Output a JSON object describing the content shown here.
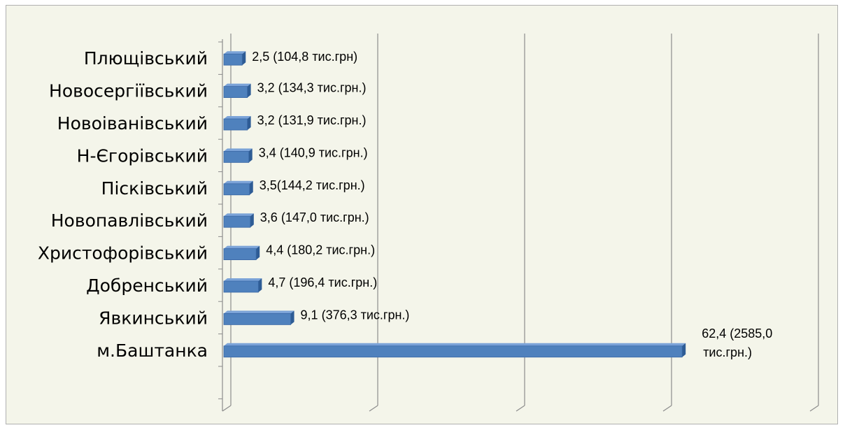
{
  "chart_data": {
    "type": "bar",
    "orientation": "horizontal",
    "title": "",
    "xlabel": "",
    "ylabel": "",
    "xlim": [
      0,
      80
    ],
    "grid": true,
    "legend": "none",
    "bar_color": "#4f81bd",
    "categories": [
      "Плющівський",
      "Новосергіївський",
      "Новоіванівський",
      "Н-Єгорівський",
      "Пісківський",
      "Новопавлівський",
      "Христофорівський",
      "Добренський",
      "Явкинський",
      "м.Баштанка"
    ],
    "values": [
      2.5,
      3.2,
      3.2,
      3.4,
      3.5,
      3.6,
      4.4,
      4.7,
      9.1,
      62.4
    ],
    "data_labels": [
      "2,5 (104,8 тис.грн)",
      "3,2 (134,3 тис.грн.)",
      "3,2 (131,9 тис.грн.)",
      "3,4 (140,9 тис.грн.)",
      "3,5(144,2 тис.грн.)",
      "3,6 (147,0 тис.грн.)",
      "4,4 (180,2 тис.грн.)",
      "4,7 (196,4 тис.грн.)",
      "9,1 (376,3 тис.грн.)",
      "62,4 (2585,0\nтис.грн.)"
    ]
  }
}
